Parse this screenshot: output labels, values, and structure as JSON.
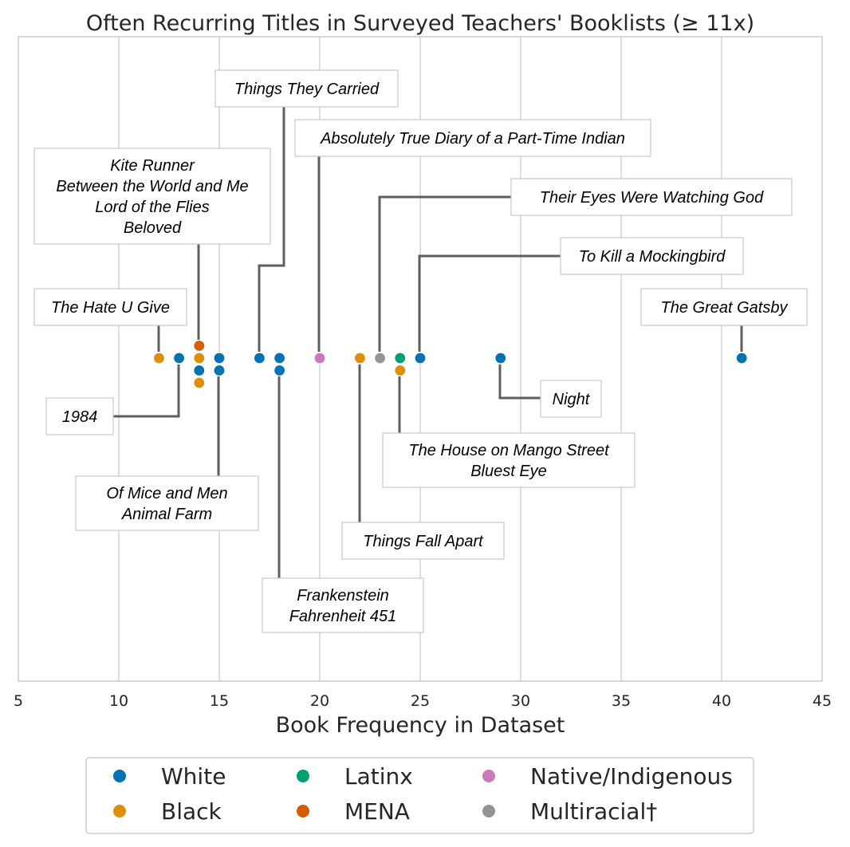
{
  "chart_data": {
    "type": "scatter",
    "title": "Often Recurring Titles in Surveyed Teachers' Booklists (≥ 11x)",
    "xlabel": "Book Frequency in Dataset",
    "xlim": [
      5,
      45
    ],
    "xticks": [
      "5",
      "10",
      "15",
      "20",
      "25",
      "30",
      "35",
      "40",
      "45"
    ],
    "grid": "vertical",
    "legend_placement": "bottom",
    "categories": [
      "White",
      "Black",
      "Latinx",
      "MENA",
      "Native/Indigenous",
      "Multiracial†"
    ],
    "colors": {
      "White": "#0173b2",
      "Black": "#de8f05",
      "Latinx": "#029e73",
      "MENA": "#d55e00",
      "Native/Indigenous": "#cc78bc",
      "Multiracial†": "#949494"
    },
    "points": [
      {
        "x": 12,
        "stack": 0,
        "group": "Black"
      },
      {
        "x": 13,
        "stack": 0,
        "group": "White"
      },
      {
        "x": 14,
        "stack": 1,
        "group": "MENA"
      },
      {
        "x": 14,
        "stack": 0,
        "group": "Black"
      },
      {
        "x": 14,
        "stack": -1,
        "group": "White"
      },
      {
        "x": 14,
        "stack": -2,
        "group": "Black"
      },
      {
        "x": 15,
        "stack": 0,
        "group": "White"
      },
      {
        "x": 15,
        "stack": -1,
        "group": "White"
      },
      {
        "x": 17,
        "stack": 0,
        "group": "White"
      },
      {
        "x": 18,
        "stack": 0,
        "group": "White"
      },
      {
        "x": 18,
        "stack": -1,
        "group": "White"
      },
      {
        "x": 20,
        "stack": 0,
        "group": "Native/Indigenous"
      },
      {
        "x": 22,
        "stack": 0,
        "group": "Black"
      },
      {
        "x": 23,
        "stack": 0,
        "group": "Multiracial†"
      },
      {
        "x": 24,
        "stack": 0,
        "group": "Latinx"
      },
      {
        "x": 24,
        "stack": -1,
        "group": "Black"
      },
      {
        "x": 25,
        "stack": 0,
        "group": "White"
      },
      {
        "x": 29,
        "stack": 0,
        "group": "White"
      },
      {
        "x": 41,
        "stack": 0,
        "group": "White"
      }
    ],
    "annotations": [
      {
        "x": 12,
        "lines": [
          "The Hate U Give"
        ]
      },
      {
        "x": 13,
        "lines": [
          "1984"
        ]
      },
      {
        "x": 14,
        "lines": [
          "Kite Runner",
          "Between the World and Me",
          "Lord of the Flies",
          "Beloved"
        ]
      },
      {
        "x": 15,
        "lines": [
          "Of Mice and Men",
          "Animal Farm"
        ]
      },
      {
        "x": 17,
        "lines": [
          "Things They Carried"
        ]
      },
      {
        "x": 18,
        "lines": [
          "Frankenstein",
          "Fahrenheit 451"
        ]
      },
      {
        "x": 20,
        "lines": [
          "Absolutely True Diary of a Part-Time Indian"
        ]
      },
      {
        "x": 22,
        "lines": [
          "Things Fall Apart"
        ]
      },
      {
        "x": 23,
        "lines": [
          "Their Eyes Were Watching God"
        ]
      },
      {
        "x": 24,
        "lines": [
          "The House on Mango Street",
          "Bluest Eye"
        ]
      },
      {
        "x": 25,
        "lines": [
          "To Kill a Mockingbird"
        ]
      },
      {
        "x": 29,
        "lines": [
          "Night"
        ]
      },
      {
        "x": 41,
        "lines": [
          "The Great Gatsby"
        ]
      }
    ]
  }
}
